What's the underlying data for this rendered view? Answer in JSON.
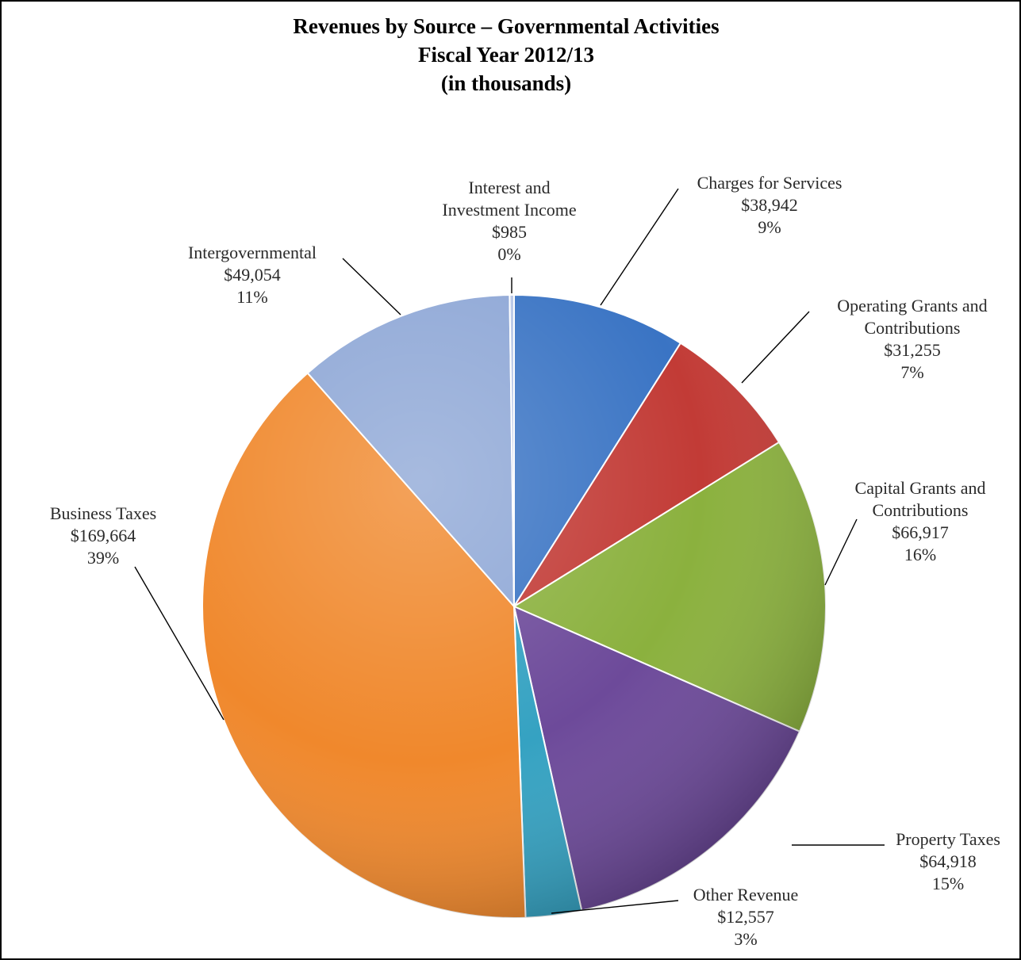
{
  "chart_data": {
    "type": "pie",
    "title": "Revenues by Source – Governmental Activities",
    "subtitle": [
      "Fiscal Year 2012/13",
      "(in thousands)"
    ],
    "slices": [
      {
        "label": [
          "Charges for Services"
        ],
        "value": 38942,
        "value_text": "$38,942",
        "percent_text": "9%",
        "color": "#3a74c4"
      },
      {
        "label": [
          "Operating Grants and",
          "Contributions"
        ],
        "value": 31255,
        "value_text": "$31,255",
        "percent_text": "7%",
        "color": "#c23b36"
      },
      {
        "label": [
          "Capital Grants and",
          "Contributions"
        ],
        "value": 66917,
        "value_text": "$66,917",
        "percent_text": "16%",
        "color": "#8bb13e"
      },
      {
        "label": [
          "Property Taxes"
        ],
        "value": 64918,
        "value_text": "$64,918",
        "percent_text": "15%",
        "color": "#6d4a9a"
      },
      {
        "label": [
          "Other Revenue"
        ],
        "value": 12557,
        "value_text": "$12,557",
        "percent_text": "3%",
        "color": "#35a2c2"
      },
      {
        "label": [
          "Business Taxes"
        ],
        "value": 169664,
        "value_text": "$169,664",
        "percent_text": "39%",
        "color": "#f0882c"
      },
      {
        "label": [
          "Intergovernmental"
        ],
        "value": 49054,
        "value_text": "$49,054",
        "percent_text": "11%",
        "color": "#8ea7d6"
      },
      {
        "label": [
          "Interest and",
          "Investment Income"
        ],
        "value": 985,
        "value_text": "$985",
        "percent_text": "0%",
        "color": "#b8c7e6"
      }
    ]
  }
}
